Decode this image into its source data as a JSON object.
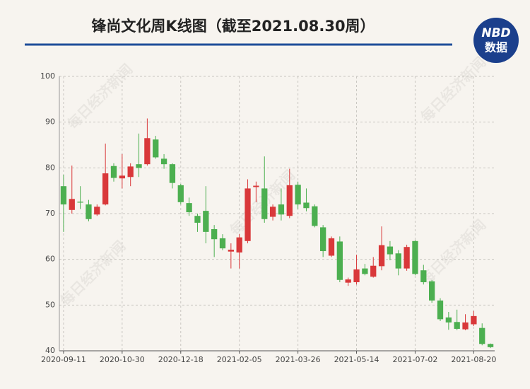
{
  "header": {
    "title": "锋尚文化周K线图（截至2021.08.30周）",
    "logo_top": "NBD",
    "logo_bottom": "数据"
  },
  "watermark": "每日经济新闻",
  "chart_data": {
    "type": "candlestick",
    "categories": [
      "2020-09-11",
      null,
      null,
      null,
      null,
      null,
      null,
      "2020-10-30",
      null,
      null,
      null,
      null,
      null,
      null,
      "2020-12-18",
      null,
      null,
      null,
      null,
      null,
      null,
      "2021-02-05",
      null,
      null,
      null,
      null,
      null,
      null,
      "2021-03-26",
      null,
      null,
      null,
      null,
      null,
      null,
      "2021-05-14",
      null,
      null,
      null,
      null,
      null,
      null,
      "2021-07-02",
      null,
      null,
      null,
      null,
      null,
      null,
      "2021-08-20",
      null,
      null
    ],
    "open": [
      76,
      70.8,
      72.6,
      72,
      69.8,
      72,
      80.4,
      77.7,
      78,
      80.8,
      80.8,
      86.2,
      82,
      80.8,
      76.2,
      72.3,
      69.5,
      70.6,
      66.6,
      64.6,
      61.7,
      61.5,
      64,
      75.8,
      75.5,
      69.3,
      72,
      69.5,
      76.3,
      72.4,
      71.6,
      67,
      60.8,
      63.9,
      54.9,
      55,
      58,
      56.2,
      58.5,
      62.8,
      61.3,
      58,
      64,
      57.6,
      55.2,
      51,
      47.3,
      46.3,
      44.7,
      45.8,
      45,
      41.5
    ],
    "high": [
      78.5,
      80.5,
      76,
      73,
      72,
      85.3,
      81,
      83,
      81,
      87.5,
      90.8,
      87,
      83,
      81,
      76.5,
      73.5,
      70,
      76,
      67.5,
      65.5,
      63.5,
      65.5,
      77.5,
      77,
      82.5,
      72,
      75.5,
      79.8,
      77,
      75.5,
      72,
      67.5,
      65,
      65,
      56,
      61,
      59,
      60.5,
      67.2,
      64,
      62,
      63.2,
      64.2,
      58.8,
      55.5,
      51.5,
      48.5,
      49,
      48,
      48.7,
      46,
      41.6
    ],
    "low": [
      66,
      70,
      71,
      68.3,
      69.5,
      71.8,
      77,
      75.5,
      76,
      78,
      80.5,
      82,
      79.8,
      75.5,
      72,
      69.5,
      66,
      63.5,
      60.5,
      62,
      58,
      58,
      63.5,
      72.5,
      68,
      68.5,
      68.5,
      69,
      71,
      70.5,
      67,
      60.5,
      60.5,
      55,
      54.2,
      54.5,
      56.5,
      56,
      57.6,
      59.8,
      56.5,
      57.5,
      56.5,
      54.5,
      50.5,
      46.5,
      44.6,
      44.5,
      44.5,
      45.4,
      41.2,
      40.6
    ],
    "close": [
      72,
      73.2,
      72.4,
      68.8,
      71.5,
      78.8,
      77.8,
      78.3,
      80.3,
      80,
      86.5,
      82.3,
      80.8,
      76.7,
      72.5,
      70.3,
      68,
      66,
      64.4,
      62.4,
      62.1,
      64.8,
      75.5,
      76.1,
      68.8,
      71.5,
      69.8,
      76.2,
      72,
      71.2,
      67.3,
      61.8,
      64.6,
      55.5,
      55.6,
      57.8,
      56.8,
      58.6,
      63.1,
      61.1,
      58,
      62.7,
      56.8,
      55,
      51,
      46.9,
      46.2,
      44.8,
      46.2,
      47.6,
      41.5,
      40.8
    ],
    "up_color": "#d9383a",
    "down_color": "#4caf50",
    "ylim": [
      40,
      100
    ],
    "yticks": [
      40,
      50,
      60,
      70,
      80,
      90,
      100
    ],
    "grid": true
  }
}
